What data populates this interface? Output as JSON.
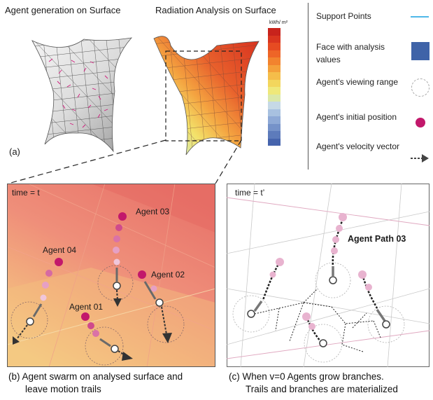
{
  "top": {
    "left_title": "Agent generation on Surface",
    "right_title": "Radiation Analysis on Surface",
    "unit_label": "kWh/ m²",
    "panel_label": "(a)"
  },
  "legend": {
    "items": [
      {
        "label": "Support Points",
        "icon": "line-icon"
      },
      {
        "label": "Face with analysis values",
        "icon": "blue-square-icon"
      },
      {
        "label": "Agent's viewing range",
        "icon": "dashed-circle-icon"
      },
      {
        "label": "Agent's initial position",
        "icon": "magenta-dot-icon"
      },
      {
        "label": "Agent's velocity vector",
        "icon": "dashed-arrow-icon"
      }
    ]
  },
  "panel_b": {
    "time_label": "time = t",
    "agents": [
      "Agent 03",
      "Agent 04",
      "Agent 02",
      "Agent 01"
    ],
    "caption_line1": "(b) Agent swarm on analysed surface and",
    "caption_line2": "leave motion trails"
  },
  "panel_c": {
    "time_label": "time = t’",
    "path_label": "Agent Path 03",
    "caption_line1": "(c) When v=0  Agents grow branches.",
    "caption_line2": "Trails and branches are materialized"
  },
  "colors": {
    "magenta": "#c2186b",
    "blue": "#3f63a8",
    "cyan": "#4fb8e8",
    "salmon": "#ef8f7a"
  }
}
